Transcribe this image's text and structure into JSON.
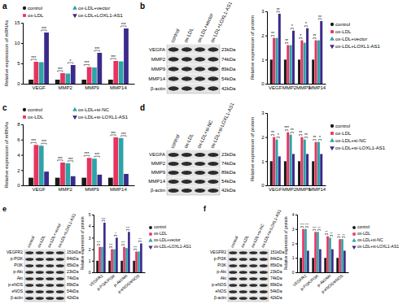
{
  "chart_data": [
    {
      "type": "bar",
      "panel": "a",
      "y_label": "Relative expression of mRNAs",
      "categories": [
        "VEGF",
        "MMP2",
        "MMP9",
        "MMP14"
      ],
      "series": [
        {
          "name": "control",
          "color": "#1a1a1a",
          "values": [
            1,
            1,
            1,
            1
          ]
        },
        {
          "name": "ox-LDL",
          "color": "#e8335f",
          "values": [
            5.4,
            2.6,
            4.1,
            5.6
          ]
        },
        {
          "name": "ox-LDL+vector",
          "color": "#2ea3a8",
          "values": [
            5.3,
            2.5,
            4.0,
            5.5
          ]
        },
        {
          "name": "ox-LDL+LOXL1-AS1",
          "color": "#3b2a8a",
          "values": [
            12.6,
            4.6,
            7.6,
            13.6
          ]
        }
      ],
      "significance": [
        [
          "***",
          "***"
        ],
        [
          "***",
          "*"
        ],
        [
          "***",
          "***"
        ],
        [
          "***",
          "***"
        ]
      ],
      "ylim": [
        0,
        15
      ],
      "yticks": [
        0,
        5,
        10,
        15
      ],
      "legend": "top"
    },
    {
      "type": "bar",
      "panel": "b",
      "y_label": "Relative expression of protein",
      "blot": {
        "lanes": [
          "control",
          "ox-LDL",
          "ox-LDL+vector",
          "ox-LDL+LOXL1-AS1"
        ],
        "rows": [
          {
            "name": "VEGFA",
            "size": "23kDa"
          },
          {
            "name": "MMP2",
            "size": "74kDa"
          },
          {
            "name": "MMP9",
            "size": "89kDa"
          },
          {
            "name": "MMP14",
            "size": "54kDa"
          },
          {
            "name": "β-actin",
            "size": "42kDa"
          }
        ]
      },
      "categories": [
        "VEGF",
        "MMP2",
        "MMP9",
        "MMP14"
      ],
      "series": [
        {
          "name": "control",
          "color": "#1a1a1a",
          "values": [
            1,
            1,
            1,
            1
          ]
        },
        {
          "name": "ox-LDL",
          "color": "#e8335f",
          "values": [
            1.9,
            1.6,
            1.8,
            1.8
          ]
        },
        {
          "name": "ox-LDL+vector",
          "color": "#2ea3a8",
          "values": [
            1.9,
            1.6,
            1.7,
            1.8
          ]
        },
        {
          "name": "ox-LDL+LOXL1-AS1",
          "color": "#3b2a8a",
          "values": [
            2.9,
            2.2,
            2.3,
            2.6
          ]
        }
      ],
      "significance": [
        [
          "**",
          "**"
        ],
        [
          "**",
          "*"
        ],
        [
          "*",
          "*"
        ],
        [
          "**",
          "**"
        ]
      ],
      "ylim": [
        0,
        3
      ],
      "yticks": [
        0,
        1,
        2,
        3
      ],
      "legend": "right"
    },
    {
      "type": "bar",
      "panel": "c",
      "y_label": "Relative expression of mRNAs",
      "categories": [
        "VEGF",
        "MMP2",
        "MMP9",
        "MMP14"
      ],
      "series": [
        {
          "name": "control",
          "color": "#1a1a1a",
          "values": [
            1,
            1,
            1,
            1
          ]
        },
        {
          "name": "ox-LDL",
          "color": "#e8335f",
          "values": [
            5.3,
            3.0,
            3.6,
            6.3
          ]
        },
        {
          "name": "ox-LDL+si-NC",
          "color": "#2ea3a8",
          "values": [
            5.2,
            2.9,
            3.5,
            6.2
          ]
        },
        {
          "name": "ox-LDL+si-LOXL1-AS1",
          "color": "#3b2a8a",
          "values": [
            1.8,
            1.2,
            1.4,
            1.5
          ]
        }
      ],
      "significance": [
        [
          "***",
          "***"
        ],
        [
          "***",
          "***"
        ],
        [
          "***",
          "***"
        ],
        [
          "***",
          "***"
        ]
      ],
      "ylim": [
        0,
        8
      ],
      "yticks": [
        0,
        2,
        4,
        6,
        8
      ],
      "legend": "top"
    },
    {
      "type": "bar",
      "panel": "d",
      "y_label": "Relative expression of protein",
      "blot": {
        "lanes": [
          "control",
          "ox-LDL",
          "ox-LDL+si-NC",
          "ox-LDL+si-LOXL1-AS1"
        ],
        "rows": [
          {
            "name": "VEGFA",
            "size": "23kDa"
          },
          {
            "name": "MMP2",
            "size": "74kDa"
          },
          {
            "name": "MMP9",
            "size": "89kDa"
          },
          {
            "name": "MMP14",
            "size": "54kDa"
          },
          {
            "name": "β-actin",
            "size": "42kDa"
          }
        ]
      },
      "categories": [
        "VEGF",
        "MMP2",
        "MMP9",
        "MMP14"
      ],
      "series": [
        {
          "name": "control",
          "color": "#1a1a1a",
          "values": [
            1,
            1,
            1,
            1
          ]
        },
        {
          "name": "ox-LDL",
          "color": "#e8335f",
          "values": [
            2.0,
            2.2,
            2.0,
            1.8
          ]
        },
        {
          "name": "ox-LDL+si-NC",
          "color": "#2ea3a8",
          "values": [
            1.9,
            2.1,
            1.9,
            1.8
          ]
        },
        {
          "name": "ox-LDL+si-LOXL1-AS1",
          "color": "#3b2a8a",
          "values": [
            1.2,
            1.3,
            1.3,
            1.3
          ]
        }
      ],
      "significance": [
        [
          "**",
          "*"
        ],
        [
          "***",
          "**"
        ],
        [
          "**",
          "**"
        ],
        [
          "**",
          "*"
        ]
      ],
      "ylim": [
        0,
        3
      ],
      "yticks": [
        0,
        1,
        2,
        3
      ],
      "legend": "right"
    },
    {
      "type": "bar",
      "panel": "e",
      "y_label": "Relative expression of protein",
      "blot": {
        "lanes": [
          "control",
          "ox-LDL",
          "ox-LDL+vector",
          "ox-LDL+LOXL1-AS1"
        ],
        "rows": [
          {
            "name": "VEGFR2",
            "size": "151kDa"
          },
          {
            "name": "p-PI3K",
            "size": "84kDa"
          },
          {
            "name": "PI3K",
            "size": "85kDa"
          },
          {
            "name": "p-Akt",
            "size": "23kDa"
          },
          {
            "name": "Akt",
            "size": "74kDa"
          },
          {
            "name": "p-eNOS",
            "size": "89kDa"
          },
          {
            "name": "eNOS",
            "size": "54kDa"
          },
          {
            "name": "β-actin",
            "size": "42kDa"
          }
        ]
      },
      "categories": [
        "VEGFR2",
        "p-PI3K/PI3K",
        "p-Akt/Akt",
        "p-eNOS/eNOS"
      ],
      "series": [
        {
          "name": "control",
          "color": "#1a1a1a",
          "values": [
            1,
            1,
            1,
            1
          ]
        },
        {
          "name": "ox-LDL",
          "color": "#e8335f",
          "values": [
            2.2,
            2.0,
            2.2,
            1.8
          ]
        },
        {
          "name": "ox-LDL+vector",
          "color": "#2ea3a8",
          "values": [
            2.2,
            2.0,
            2.1,
            1.8
          ]
        },
        {
          "name": "ox-LDL+LOXL1-AS1",
          "color": "#3b2a8a",
          "values": [
            4.3,
            3.0,
            3.5,
            2.5
          ]
        }
      ],
      "significance": [
        [
          "***",
          "***"
        ],
        [
          "***",
          "*"
        ],
        [
          "***",
          "***"
        ],
        [
          "***",
          "**"
        ]
      ],
      "ylim": [
        0,
        5
      ],
      "yticks": [
        0,
        1,
        2,
        3,
        4,
        5
      ],
      "legend": "right"
    },
    {
      "type": "bar",
      "panel": "f",
      "y_label": "Relative expression of protein",
      "blot": {
        "lanes": [
          "control",
          "ox-LDL",
          "ox-LDL+si-NC",
          "ox-LDL+si-LOXL1-AS1"
        ],
        "rows": [
          {
            "name": "VEGFR2",
            "size": "151kDa"
          },
          {
            "name": "p-PI3K",
            "size": "84kDa"
          },
          {
            "name": "PI3K",
            "size": "85kDa"
          },
          {
            "name": "p-Akt",
            "size": "23kDa"
          },
          {
            "name": "Akt",
            "size": "74kDa"
          },
          {
            "name": "p-eNOS",
            "size": "89kDa"
          },
          {
            "name": "eNOS",
            "size": "54kDa"
          },
          {
            "name": "β-actin",
            "size": "42kDa"
          }
        ]
      },
      "categories": [
        "VEGFR2",
        "p-PI3K/PI3K",
        "p-Akt/Akt",
        "p-eNOS/eNOS"
      ],
      "series": [
        {
          "name": "control",
          "color": "#1a1a1a",
          "values": [
            1,
            1,
            1,
            1
          ]
        },
        {
          "name": "ox-LDL",
          "color": "#e8335f",
          "values": [
            3.0,
            2.8,
            2.5,
            2.3
          ]
        },
        {
          "name": "ox-LDL+si-NC",
          "color": "#2ea3a8",
          "values": [
            3.0,
            2.8,
            2.4,
            2.3
          ]
        },
        {
          "name": "ox-LDL+si-LOXL1-AS1",
          "color": "#3b2a8a",
          "values": [
            1.5,
            1.6,
            1.6,
            1.5
          ]
        }
      ],
      "significance": [
        [
          "***",
          "***"
        ],
        [
          "***",
          "**"
        ],
        [
          "**",
          "**"
        ],
        [
          "**",
          "**"
        ]
      ],
      "ylim": [
        0,
        4
      ],
      "yticks": [
        0,
        1,
        2,
        3,
        4
      ],
      "legend": "right"
    }
  ]
}
